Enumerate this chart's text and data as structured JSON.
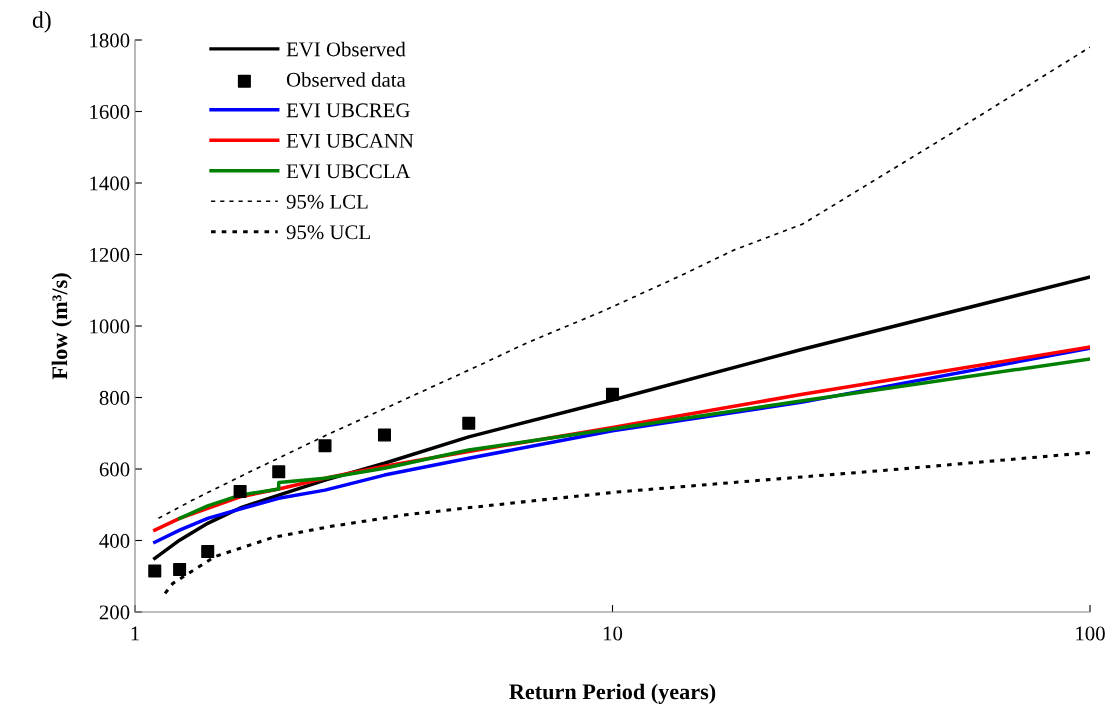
{
  "chart_data": {
    "type": "line",
    "log": "x",
    "xlabel": "Return Period (years)",
    "ylabel": "Flow (m³/s)",
    "annotations": [
      "d)"
    ],
    "xlim": [
      1,
      100
    ],
    "ylim": [
      200,
      1800
    ],
    "xticks": [
      1,
      10,
      100
    ],
    "yticks": [
      200,
      400,
      600,
      800,
      1000,
      1200,
      1400,
      1600,
      1800
    ],
    "grid": false,
    "legend": "top left",
    "series": [
      {
        "name": "EVI Observed",
        "color": "#000000",
        "line_style": "solid",
        "marker": "none",
        "x": [
          1.1,
          1.24,
          1.42,
          1.66,
          2,
          2.5,
          3.33,
          5,
          10,
          25,
          100
        ],
        "values": [
          350,
          401,
          448,
          491,
          527,
          569,
          616,
          690,
          793,
          935,
          1137
        ]
      },
      {
        "name": "Observed data",
        "type": "scatter",
        "color": "#000000",
        "marker": "square",
        "x": [
          1.1,
          1.24,
          1.42,
          1.66,
          2,
          2.5,
          3.33,
          5,
          10
        ],
        "values": [
          315,
          319,
          369,
          537,
          592,
          665,
          695,
          728,
          809
        ]
      },
      {
        "name": "EVI UBCREG",
        "color": "#0000ff",
        "line_style": "solid",
        "marker": "none",
        "x": [
          1.1,
          1.24,
          1.42,
          1.66,
          2,
          2.5,
          3.33,
          5,
          10,
          25,
          100
        ],
        "values": [
          395,
          429,
          462,
          488,
          518,
          541,
          583,
          630,
          707,
          787,
          938
        ]
      },
      {
        "name": "EVI UBCANN",
        "color": "#ff0000",
        "line_style": "solid",
        "marker": "none",
        "x": [
          1.1,
          1.24,
          1.42,
          1.66,
          2,
          2.5,
          3.33,
          5,
          10,
          25,
          100
        ],
        "values": [
          429,
          462,
          490,
          522,
          544,
          574,
          608,
          649,
          716,
          809,
          941
        ]
      },
      {
        "name": "EVI UBCCLA",
        "color": "#008000",
        "line_style": "solid",
        "marker": "none",
        "x": [
          1.24,
          1.42,
          1.66,
          2,
          2,
          2.5,
          3.33,
          5,
          10,
          25,
          100
        ],
        "values": [
          462,
          497,
          527,
          544,
          562,
          574,
          602,
          653,
          712,
          791,
          908
        ]
      },
      {
        "name": "95% LCL",
        "color": "#000000",
        "line_style": "dashed",
        "marker": "none",
        "x": [
          1.12,
          1.32,
          1.74,
          2.52,
          3.65,
          5.28,
          6.6,
          9.6,
          13.7,
          18,
          25,
          50,
          100
        ],
        "values": [
          462,
          513,
          592,
          695,
          793,
          891,
          952,
          1043,
          1137,
          1213,
          1285,
          1530,
          1780
        ]
      },
      {
        "name": "95% UCL",
        "color": "#000000",
        "line_style": "dotted",
        "marker": "none",
        "x": [
          1.156,
          1.2,
          1.47,
          1.95,
          2.56,
          3.65,
          4.87,
          6.6,
          10.1,
          19.8,
          37,
          100
        ],
        "values": [
          252,
          280,
          355,
          409,
          439,
          471,
          490,
          509,
          535,
          567,
          596,
          646
        ]
      }
    ]
  }
}
